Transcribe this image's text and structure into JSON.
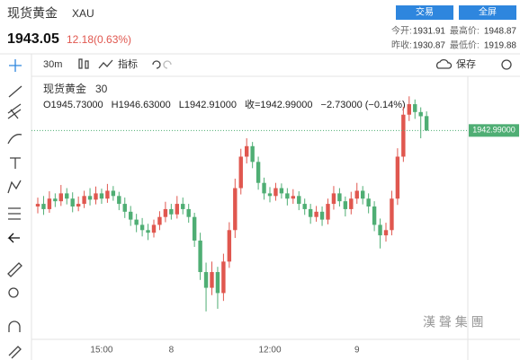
{
  "header": {
    "name": "现货黄金",
    "symbol": "XAU",
    "price": "1943.05",
    "change": "12.18(0.63%)",
    "buttons": [
      "交易",
      "全屏"
    ],
    "stats": [
      [
        "今开:",
        "1931.91",
        "最高价:",
        "1948.87"
      ],
      [
        "昨收:",
        "1930.87",
        "最低价:",
        "1919.88"
      ]
    ]
  },
  "toolbar": {
    "interval": "30m",
    "indicators": "指标",
    "save": "保存"
  },
  "chart_data": {
    "type": "candlestick",
    "title": "现货黄金",
    "interval": "30",
    "ohlc_label": [
      "O1945.73000",
      "H1946.63000",
      "L1942.91000",
      "收=1942.99000",
      "−2.73000 (−0.14%)"
    ],
    "categories": [
      null,
      null,
      null,
      null,
      null,
      null,
      null,
      null,
      null,
      null,
      null,
      "15:00",
      null,
      null,
      null,
      null,
      null,
      null,
      null,
      null,
      null,
      null,
      null,
      "8",
      null,
      null,
      null,
      null,
      null,
      null,
      null,
      null,
      null,
      null,
      null,
      null,
      null,
      null,
      null,
      null,
      "12:00",
      null,
      null,
      null,
      null,
      null,
      null,
      null,
      null,
      null,
      null,
      null,
      null,
      null,
      null,
      "9",
      null,
      null,
      null,
      null,
      null,
      null,
      null,
      null,
      null,
      null,
      null,
      null
    ],
    "open": [
      1928.5,
      1929,
      1928,
      1930,
      1929.5,
      1931,
      1930,
      1928.5,
      1929,
      1930.5,
      1929.8,
      1931,
      1930,
      1931.5,
      1930.5,
      1929,
      1927.5,
      1926,
      1925,
      1924,
      1923.5,
      1925,
      1926.5,
      1928,
      1927,
      1929,
      1928,
      1926.5,
      1922,
      1916,
      1913,
      1916,
      1912,
      1918,
      1924,
      1932,
      1938,
      1940,
      1937,
      1933,
      1931,
      1930.5,
      1932,
      1931,
      1930,
      1930.5,
      1929,
      1928,
      1926.5,
      1927.5,
      1926,
      1929,
      1931,
      1929.5,
      1928,
      1930,
      1931.5,
      1930,
      1928.5,
      1925,
      1923,
      1924,
      1930,
      1938,
      1946,
      1948,
      1946.5,
      1945.73
    ],
    "high": [
      1930.2,
      1930.5,
      1931.4,
      1931,
      1932.6,
      1932,
      1931.2,
      1930.4,
      1931.5,
      1932,
      1932.3,
      1931.9,
      1932.8,
      1932.4,
      1931.3,
      1930.2,
      1928.6,
      1927.1,
      1926.3,
      1925.2,
      1926,
      1927.6,
      1929.4,
      1929,
      1930.5,
      1930.2,
      1929,
      1927.3,
      1923.5,
      1917.8,
      1918,
      1917,
      1919.5,
      1925.5,
      1933.8,
      1939.5,
      1941.5,
      1940.8,
      1938,
      1934,
      1932.2,
      1933,
      1932.9,
      1932,
      1931.8,
      1931.4,
      1930,
      1929,
      1928.6,
      1928.5,
      1930,
      1932.4,
      1932,
      1930.4,
      1931.3,
      1933,
      1932.4,
      1931,
      1929.5,
      1926.2,
      1925.4,
      1931.5,
      1939.6,
      1947.5,
      1949.5,
      1948.9,
      1947.4,
      1946.63
    ],
    "low": [
      1927.2,
      1926.9,
      1927.3,
      1928.4,
      1928.6,
      1928.9,
      1927.4,
      1927.6,
      1928.2,
      1928.7,
      1928.9,
      1929,
      1929.2,
      1929.6,
      1927.8,
      1926.3,
      1924.8,
      1923.6,
      1922.8,
      1922.1,
      1922.6,
      1924,
      1925.5,
      1926,
      1926.2,
      1927,
      1925.4,
      1920.8,
      1914.5,
      1908.5,
      1911.6,
      1909,
      1910.5,
      1916.8,
      1922.5,
      1930.8,
      1936.7,
      1935.8,
      1931.7,
      1929.8,
      1929.3,
      1929.6,
      1930,
      1928.7,
      1929,
      1927.8,
      1926.9,
      1925.2,
      1925.6,
      1924.8,
      1925.1,
      1927.9,
      1928.5,
      1926.6,
      1927,
      1929,
      1928.9,
      1927.2,
      1923.8,
      1920.5,
      1921.8,
      1923,
      1928.8,
      1937,
      1944.8,
      1945.2,
      1941.5,
      1942.91
    ],
    "close": [
      1929,
      1928,
      1930,
      1929.5,
      1931,
      1930,
      1928.5,
      1929,
      1930.5,
      1929.8,
      1931,
      1930,
      1931.5,
      1930.5,
      1929,
      1927.5,
      1926,
      1925,
      1924,
      1923.5,
      1925,
      1926.5,
      1928,
      1927,
      1929,
      1928,
      1926.5,
      1922,
      1916,
      1913,
      1916,
      1912,
      1918,
      1924,
      1932,
      1938,
      1940,
      1937,
      1933,
      1931,
      1930.5,
      1932,
      1931,
      1930,
      1930.5,
      1929,
      1928,
      1926.5,
      1927.5,
      1926,
      1929,
      1931,
      1929.5,
      1928,
      1930,
      1931.5,
      1930,
      1928.5,
      1925,
      1923,
      1924,
      1930,
      1938,
      1946,
      1948,
      1946.5,
      1945.7,
      1942.99
    ],
    "ylim": [
      1904.2,
      1952.8
    ],
    "price_line": {
      "value": 1942.99,
      "label": "1942.99000"
    },
    "up_color": "#e0574f",
    "down_color": "#4fae74"
  },
  "watermark": "漢 聲 集 團"
}
